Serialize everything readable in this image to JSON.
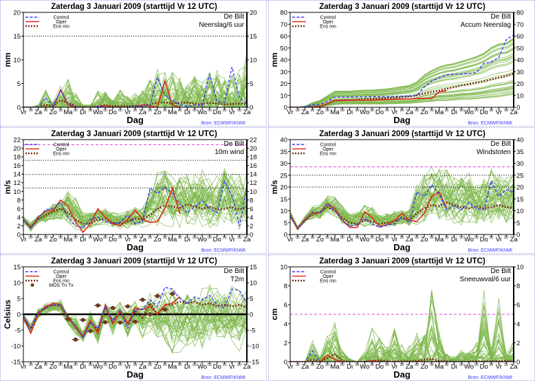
{
  "title": "Zaterdag   3 Januari   2009  (starttijd  Vr 12 UTC)",
  "location": "De Bilt",
  "xlabel": "Dag",
  "source": "Bron: ECMWF/KNMI",
  "day_labels": [
    "Vr",
    "Za",
    "Zo",
    "Ma",
    "Di",
    "Wo",
    "Do",
    "Vr",
    "Za",
    "Zo",
    "Ma",
    "Di",
    "Wo",
    "Do",
    "Vr",
    "Za"
  ],
  "minor_label": "00",
  "legend": {
    "control": "Control",
    "oper": "Oper",
    "ensmean": "Ens mn",
    "mos": "MOS Tn Tx"
  },
  "colors": {
    "ensemble": "#7fb84e",
    "control": "#3a3aff",
    "oper": "#e02a1a",
    "ensmean": "#7a2a12",
    "mos": "#6b3a1e",
    "threshold": "#e040e0",
    "reference": "#000000"
  },
  "chart_data": [
    {
      "type": "line",
      "variable": "Neerslag/6 uur",
      "ylabel": "mm",
      "ylim": [
        0,
        20
      ],
      "yticks": [
        0,
        5,
        10,
        15,
        20
      ],
      "grid": false,
      "reference_lines": [
        {
          "value": 15,
          "style": "dotted",
          "color": "#000000"
        }
      ],
      "control": [
        0,
        0,
        0,
        2,
        0.3,
        3.5,
        0.8,
        0,
        0,
        0,
        0.2,
        0,
        0,
        0,
        0,
        0.3,
        0.2,
        0.5,
        6.3,
        2.5,
        1.5,
        0.5,
        0.2,
        0.5,
        0.3,
        7,
        1.2,
        1,
        8.5,
        2,
        0.8
      ],
      "oper": [
        0,
        0,
        0,
        0,
        0,
        3.7,
        0.5,
        0,
        0,
        0,
        0,
        0.4,
        0,
        0,
        0,
        0,
        0.5,
        0.3,
        0,
        5.5,
        0.5,
        0
      ],
      "ensmean": [
        0,
        0,
        0,
        0.5,
        0.3,
        1.5,
        1,
        0.2,
        0,
        0,
        0.2,
        0.4,
        0.2,
        0.3,
        0.2,
        0.3,
        0.4,
        0.6,
        1,
        1,
        0.8,
        1,
        1,
        0.7,
        0.7,
        0.9,
        0.8,
        0.6,
        0.7,
        0.8,
        0.7
      ],
      "ensemble_min": [
        0,
        0,
        0,
        0,
        0,
        0,
        0,
        0,
        0,
        0,
        0,
        0,
        0,
        0,
        0,
        0,
        0,
        0,
        0,
        0,
        0,
        0,
        0,
        0,
        0,
        0,
        0,
        0,
        0,
        0,
        0
      ],
      "ensemble_max": [
        0,
        0,
        0.5,
        3.7,
        1,
        4.5,
        6,
        3,
        0.5,
        0.5,
        3.8,
        3.5,
        1.5,
        3.8,
        2.5,
        3,
        4,
        6.5,
        8.5,
        7.5,
        7.5,
        6.5,
        5,
        7,
        5.5,
        7.5,
        9,
        6.5,
        7,
        8.5,
        12
      ]
    },
    {
      "type": "line",
      "variable": "Accum Neerslag",
      "ylabel": "mm",
      "ylim": [
        0,
        80
      ],
      "yticks": [
        0,
        10,
        20,
        30,
        40,
        50,
        60,
        70,
        80
      ],
      "grid": false,
      "reference_lines": [],
      "control": [
        0,
        0,
        0.5,
        2,
        2.5,
        5,
        8.5,
        8.5,
        8.5,
        8.7,
        8.8,
        9,
        9,
        9,
        9.2,
        9.4,
        9.5,
        10,
        17,
        22,
        25,
        27.5,
        28,
        28,
        28.5,
        29,
        37,
        38,
        42,
        57,
        61
      ],
      "oper": [
        0,
        0,
        0,
        0,
        0.5,
        3,
        6,
        6,
        6,
        6,
        6,
        6,
        6.5,
        6.5,
        6.8,
        7,
        7,
        7.5,
        7.5,
        7.5,
        13,
        14
      ],
      "ensmean": [
        0,
        0,
        0,
        0.5,
        1,
        3,
        5.5,
        6,
        6.2,
        6.5,
        7,
        7.2,
        7.5,
        7.8,
        8,
        8.5,
        9,
        10,
        11.5,
        13,
        14,
        15.5,
        17,
        18.5,
        19.5,
        21,
        22,
        23.5,
        25,
        26.5,
        28.5
      ],
      "ensemble_min": [
        0,
        0,
        0,
        0,
        0,
        1,
        2,
        2.5,
        2.5,
        2.5,
        2.5,
        2.5,
        2.5,
        2.6,
        2.7,
        3,
        3,
        3.5,
        4,
        4.5,
        5,
        5,
        5.5,
        6,
        6,
        6.5,
        7,
        7.5,
        8,
        9,
        10
      ],
      "ensemble_max": [
        0,
        0,
        1,
        4,
        6,
        10,
        14,
        14,
        14,
        14.5,
        15,
        15,
        15.5,
        16,
        17,
        18,
        19,
        22,
        28,
        32,
        35,
        37,
        38,
        40,
        42,
        44,
        47,
        52,
        55,
        56,
        60
      ]
    },
    {
      "type": "line",
      "variable": "10m wind",
      "ylabel": "m/s",
      "ylim": [
        0,
        22
      ],
      "yticks": [
        0,
        2,
        4,
        6,
        8,
        10,
        12,
        14,
        16,
        18,
        20,
        22
      ],
      "grid": false,
      "reference_lines": [
        {
          "value": 20.8,
          "style": "dashed",
          "color": "#e040e0"
        },
        {
          "value": 17.2,
          "style": "dotted",
          "color": "#000000"
        },
        {
          "value": 13.9,
          "style": "dotted",
          "color": "#000000"
        },
        {
          "value": 10.8,
          "style": "dotted",
          "color": "#000000"
        }
      ],
      "control": [
        3.5,
        1.5,
        3.8,
        5.8,
        6,
        7.5,
        4,
        2,
        1.5,
        3.5,
        4,
        3,
        2.5,
        2.8,
        4.5,
        2.5,
        3,
        10.8,
        9.5,
        11,
        9.5,
        7,
        5,
        6.5,
        7.8,
        6,
        5,
        12.3,
        9,
        2,
        11
      ],
      "oper": [
        3.5,
        1.5,
        4,
        5.5,
        5.5,
        8,
        6.5,
        3,
        0.5,
        2.5,
        6,
        4,
        2.5,
        2,
        3.5,
        5.7,
        3.5,
        2.8,
        3,
        6,
        10.7,
        4.8
      ],
      "ensmean": [
        3.3,
        1.8,
        3.5,
        4.5,
        5.3,
        6,
        5,
        3.5,
        2.5,
        2.5,
        3.5,
        3.5,
        2.8,
        2.5,
        3,
        3.7,
        3.5,
        4.5,
        6,
        6.8,
        6.5,
        6.2,
        7,
        6.5,
        6,
        6.5,
        5.8,
        6,
        6.3,
        5.8,
        6.4
      ],
      "ensemble_min": [
        2.5,
        0.5,
        2.5,
        2.5,
        3,
        3,
        2,
        1,
        0.3,
        1,
        1.5,
        1.5,
        1,
        1,
        1,
        1.5,
        1,
        1,
        1.5,
        1.5,
        1,
        1.5,
        1,
        1,
        1,
        1,
        1,
        1,
        1,
        1,
        1
      ],
      "ensemble_max": [
        4.5,
        3,
        4.5,
        6,
        7.5,
        8,
        11,
        9,
        6,
        5.5,
        7,
        7,
        5.5,
        5,
        6,
        7,
        7,
        12,
        16,
        16.5,
        14,
        15,
        14.5,
        15,
        16,
        14,
        14,
        17,
        15,
        14.5,
        14.5
      ]
    },
    {
      "type": "line",
      "variable": "Windstoten",
      "ylabel": "m/s",
      "ylim": [
        0,
        40
      ],
      "yticks": [
        0,
        5,
        10,
        15,
        20,
        25,
        30,
        35,
        40
      ],
      "grid": false,
      "reference_lines": [
        {
          "value": 28.5,
          "style": "dashed",
          "color": "#e040e0"
        },
        {
          "value": 25,
          "style": "dotted",
          "color": "#000000"
        },
        {
          "value": 20,
          "style": "dotted",
          "color": "#000000"
        }
      ],
      "control": [
        8,
        2.5,
        6,
        9.5,
        9,
        13,
        10,
        6,
        3.5,
        4,
        7,
        4.5,
        3,
        4,
        4.5,
        7.5,
        5,
        18,
        16,
        21,
        17,
        10.5,
        12,
        10.5,
        13.5,
        11,
        10.5,
        22.5,
        16,
        19,
        18
      ],
      "oper": [
        8,
        2.5,
        6.5,
        9,
        9,
        13,
        11,
        6,
        3,
        3,
        9.5,
        7,
        3.5,
        4,
        6,
        9,
        6,
        5.5,
        9,
        16,
        18,
        11
      ],
      "ensmean": [
        8,
        2.5,
        6,
        8.5,
        9.5,
        11.5,
        10,
        7,
        5,
        4.5,
        6,
        5.5,
        4.5,
        5,
        5.5,
        7,
        6,
        9,
        11,
        12.5,
        12,
        13.5,
        12.5,
        11.5,
        11,
        12,
        11,
        11.5,
        12.5,
        11.5,
        11
      ],
      "ensemble_min": [
        7,
        1.5,
        4.5,
        6,
        6,
        7,
        6,
        4,
        2,
        2,
        2.5,
        3,
        2,
        2,
        2.5,
        3,
        2.5,
        2.5,
        3,
        3,
        3,
        3,
        3,
        2.5,
        2.5,
        2.5,
        2.5,
        2.5,
        2.5,
        2.5,
        2.5
      ],
      "ensemble_max": [
        10,
        3.5,
        8,
        12,
        13,
        17,
        17,
        13,
        9,
        10,
        13,
        12,
        9,
        9,
        10,
        11,
        11,
        22,
        28,
        30,
        32,
        28,
        26,
        25,
        27,
        25,
        26,
        30,
        27,
        25,
        28
      ]
    },
    {
      "type": "line",
      "variable": "T2m",
      "ylabel": "Celsius",
      "ylim": [
        -15,
        15
      ],
      "yticks": [
        -15,
        -10,
        -5,
        0,
        5,
        10,
        15
      ],
      "grid": false,
      "reference_lines": [
        {
          "value": 0,
          "style": "thick",
          "color": "#000000"
        }
      ],
      "control": [
        -0.5,
        -4.5,
        0.5,
        2,
        3,
        3,
        -1.5,
        -3.5,
        -7.5,
        -2.5,
        -4.5,
        2.5,
        -2,
        1.5,
        -4.5,
        1.5,
        1.5,
        4.5,
        2.5,
        8.5,
        8,
        5,
        3.5,
        5.5,
        4.5,
        6,
        3,
        2,
        8,
        7.5,
        3.5
      ],
      "oper": [
        -1,
        -6,
        0,
        2.5,
        3.5,
        3,
        -1,
        -4,
        -7,
        -2,
        -6,
        3,
        -3,
        1,
        -3,
        2,
        1.5,
        2.5,
        0,
        3,
        3.5,
        5.5
      ],
      "ensmean": [
        -1,
        -4.5,
        0.5,
        2,
        3,
        2.5,
        -1,
        -4,
        -7,
        -2.5,
        -5,
        2.5,
        -2.5,
        1,
        -3,
        1,
        -1,
        3.5,
        0,
        3,
        3,
        4,
        3.5,
        4,
        3,
        3.5,
        2.5,
        3,
        2.5,
        3,
        2
      ],
      "ensemble_min": [
        -2,
        -6.5,
        -1.5,
        0,
        1,
        0,
        -4,
        -7,
        -9,
        -6,
        -10,
        -2,
        -7,
        -3,
        -9,
        -4,
        -8,
        -6,
        -10,
        -10,
        -13,
        -13,
        -12,
        -11,
        -12,
        -10,
        -11,
        -10,
        -10,
        -12,
        -11
      ],
      "ensemble_max": [
        0.5,
        -3,
        2,
        3.5,
        4,
        5,
        1,
        0,
        -5,
        2,
        -2,
        4,
        2,
        4,
        3,
        5,
        6,
        8,
        7.5,
        10,
        10,
        10,
        9,
        9,
        9.5,
        10,
        9,
        9,
        10,
        9,
        10
      ],
      "mos_tn_tx": [
        null,
        null,
        null,
        null,
        null,
        null,
        -1.5,
        -8,
        -1.8,
        -5.3,
        2.8,
        -2.5,
        2,
        -2.6,
        2.5,
        -2.3,
        4.6,
        0,
        5.8,
        1.5,
        6.5,
        null,
        null,
        null,
        null,
        null,
        null,
        null,
        null,
        null,
        null
      ]
    },
    {
      "type": "line",
      "variable": "Sneeuwval/6 uur",
      "ylabel": "cm",
      "ylim": [
        0,
        10
      ],
      "yticks": [
        0,
        2,
        4,
        6,
        8,
        10
      ],
      "grid": false,
      "reference_lines": [
        {
          "value": 5,
          "style": "dashed",
          "color": "#e040e0"
        }
      ],
      "control": [
        0,
        0,
        0,
        1.1,
        0,
        0,
        0,
        0,
        0,
        0,
        0,
        0,
        0,
        0,
        0,
        0,
        0,
        0,
        0,
        0,
        0,
        0,
        0,
        0,
        0,
        0,
        0,
        0,
        0,
        0,
        0
      ],
      "oper": [
        0,
        0,
        0,
        0,
        0,
        0.7,
        0.2,
        0,
        0,
        0,
        0,
        0.1,
        0,
        0,
        0,
        0,
        0,
        0,
        0,
        0,
        0,
        0
      ],
      "ensmean": [
        0,
        0,
        0,
        0.2,
        0,
        0.4,
        0.8,
        0.1,
        0,
        0,
        0,
        0.1,
        0.15,
        0.05,
        0,
        0.05,
        0.05,
        0.1,
        0.2,
        0.3,
        0.1,
        0.05,
        0,
        0,
        0,
        0.05,
        0.05,
        0.05,
        0.05,
        0.1,
        0.05
      ],
      "ensemble_min": [
        0,
        0,
        0,
        0,
        0,
        0,
        0,
        0,
        0,
        0,
        0,
        0,
        0,
        0,
        0,
        0,
        0,
        0,
        0,
        0,
        0,
        0,
        0,
        0,
        0,
        0,
        0,
        0,
        0,
        0,
        0
      ],
      "ensemble_max": [
        0,
        0,
        0,
        2.3,
        0.5,
        3,
        4.2,
        1.5,
        0.3,
        0,
        1,
        3.7,
        3.3,
        1.5,
        3.9,
        2,
        1.8,
        3.2,
        2.8,
        7.7,
        3,
        1,
        0.5,
        1.3,
        1,
        2,
        8,
        1.5,
        6.7,
        1,
        2.3
      ]
    }
  ]
}
